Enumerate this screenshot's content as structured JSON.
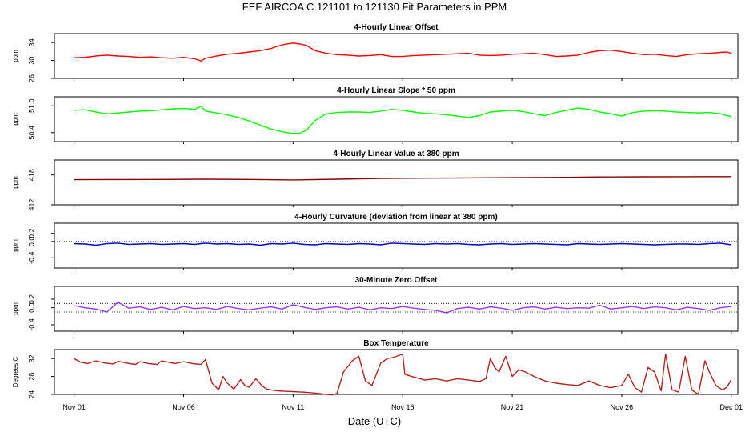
{
  "figure": {
    "title": "FEF   AIRCOA C   121101 to 121130   Fit Parameters in PPM",
    "xlabel": "Date (UTC)",
    "x_tick_labels": [
      "Nov 01",
      "Nov 06",
      "Nov 11",
      "Nov 16",
      "Nov 21",
      "Nov 26",
      "Dec 01"
    ],
    "x_ticks_day": [
      1,
      6,
      11,
      16,
      21,
      26,
      31
    ],
    "x_range_days": [
      0.1,
      31.3
    ]
  },
  "chart_data": [
    {
      "type": "line",
      "title": "4-Hourly Linear Offset",
      "ylabel": "ppm",
      "ylim": [
        26,
        36
      ],
      "yticks": [
        26,
        30,
        34
      ],
      "ytick_labels": [
        "26",
        "30",
        "34"
      ],
      "color": "#ff0000",
      "reference_lines": [],
      "series": [
        {
          "name": "offset",
          "x": [
            1,
            1.5,
            2,
            2.5,
            3,
            3.5,
            4,
            4.5,
            5,
            5.5,
            6,
            6.5,
            6.8,
            7,
            7.5,
            8,
            8.5,
            9,
            9.5,
            10,
            10.3,
            10.6,
            11,
            11.3,
            11.6,
            12,
            12.5,
            13,
            13.5,
            14,
            14.5,
            15,
            15.5,
            16,
            16.5,
            17,
            17.5,
            18,
            18.5,
            19,
            19.5,
            20,
            20.5,
            21,
            21.5,
            22,
            22.5,
            23,
            23.5,
            24,
            24.5,
            25,
            25.5,
            26,
            26.5,
            27,
            27.5,
            28,
            28.5,
            29,
            29.5,
            30,
            30.5,
            30.8,
            31
          ],
          "y": [
            30.6,
            30.7,
            31.0,
            31.2,
            31.0,
            30.9,
            30.7,
            30.8,
            30.6,
            30.5,
            30.7,
            30.4,
            29.9,
            30.5,
            31.0,
            31.4,
            31.6,
            31.9,
            32.2,
            32.7,
            33.2,
            33.6,
            33.9,
            33.7,
            33.4,
            32.2,
            31.6,
            31.3,
            31.2,
            31.0,
            31.1,
            31.3,
            30.9,
            30.9,
            31.1,
            31.2,
            31.3,
            31.4,
            31.5,
            31.6,
            31.2,
            31.1,
            31.2,
            31.4,
            31.5,
            31.6,
            31.3,
            30.9,
            31.0,
            31.2,
            31.8,
            32.2,
            32.3,
            32.0,
            31.6,
            31.3,
            31.4,
            31.1,
            30.9,
            31.3,
            31.5,
            31.6,
            31.8,
            31.9,
            31.6
          ]
        }
      ]
    },
    {
      "type": "line",
      "title": "4-Hourly Linear Slope * 50 ppm",
      "ylabel": "ppm",
      "ylim": [
        50.2,
        51.2
      ],
      "yticks": [
        50.4,
        51.0
      ],
      "ytick_labels": [
        "50.4",
        "51.0"
      ],
      "color": "#00ff00",
      "reference_lines": [],
      "series": [
        {
          "name": "slope",
          "x": [
            1,
            1.5,
            2,
            2.5,
            3,
            3.5,
            4,
            4.5,
            5,
            5.5,
            6,
            6.5,
            6.8,
            7,
            7.5,
            8,
            8.5,
            9,
            9.5,
            10,
            10.5,
            11,
            11.3,
            11.6,
            12,
            12.5,
            13,
            13.5,
            14,
            14.5,
            15,
            15.5,
            16,
            16.5,
            17,
            17.5,
            18,
            18.5,
            19,
            19.5,
            20,
            20.5,
            21,
            21.5,
            22,
            22.5,
            23,
            23.5,
            24,
            24.5,
            25,
            25.5,
            26,
            26.5,
            27,
            27.5,
            28,
            28.5,
            29,
            29.5,
            30,
            30.5,
            30.8,
            31
          ],
          "y": [
            50.9,
            50.91,
            50.86,
            50.82,
            50.84,
            50.86,
            50.88,
            50.89,
            50.91,
            50.93,
            50.94,
            50.92,
            50.99,
            50.88,
            50.84,
            50.8,
            50.74,
            50.66,
            50.57,
            50.48,
            50.42,
            50.38,
            50.39,
            50.45,
            50.67,
            50.82,
            50.85,
            50.86,
            50.86,
            50.85,
            50.88,
            50.92,
            50.9,
            50.86,
            50.83,
            50.82,
            50.8,
            50.77,
            50.74,
            50.78,
            50.86,
            50.88,
            50.9,
            50.87,
            50.82,
            50.78,
            50.85,
            50.9,
            50.95,
            50.92,
            50.86,
            50.82,
            50.77,
            50.85,
            50.88,
            50.89,
            50.88,
            50.86,
            50.85,
            50.84,
            50.85,
            50.82,
            50.78,
            50.76
          ]
        }
      ]
    },
    {
      "type": "line",
      "title": "4-Hourly Linear Value at 380 ppm",
      "ylabel": "ppm",
      "ylim": [
        412,
        421
      ],
      "yticks": [
        412,
        418
      ],
      "ytick_labels": [
        "412",
        "418"
      ],
      "color": "#8b0000",
      "reference_lines": [],
      "series": [
        {
          "name": "value380",
          "x": [
            1,
            3,
            5,
            7,
            9,
            11,
            13,
            15,
            17,
            19,
            21,
            23,
            25,
            27,
            29,
            31
          ],
          "y": [
            417.05,
            417.08,
            417.1,
            417.14,
            417.1,
            417.0,
            417.15,
            417.3,
            417.35,
            417.4,
            417.45,
            417.5,
            417.6,
            417.62,
            417.64,
            417.66
          ]
        }
      ]
    },
    {
      "type": "line",
      "title": "4-Hourly Curvature (deviation from linear at 380 ppm)",
      "ylabel": "ppm",
      "ylim": [
        -0.65,
        0.45
      ],
      "yticks": [
        -0.4,
        0.0,
        0.2
      ],
      "ytick_labels": [
        "-0.4",
        "0.0",
        "0.2"
      ],
      "color": "#0000cd",
      "reference_lines": [
        0.0
      ],
      "series": [
        {
          "name": "curvature",
          "x": [
            1,
            1.5,
            2,
            2.5,
            3,
            3.5,
            4,
            4.5,
            5,
            5.5,
            6,
            6.5,
            7,
            7.5,
            8,
            8.5,
            9,
            9.5,
            10,
            10.5,
            11,
            11.5,
            12,
            12.5,
            13,
            13.5,
            14,
            14.5,
            15,
            15.5,
            16,
            16.5,
            17,
            17.5,
            18,
            18.5,
            19,
            19.5,
            20,
            20.5,
            21,
            21.5,
            22,
            22.5,
            23,
            23.5,
            24,
            24.5,
            25,
            25.5,
            26,
            26.5,
            27,
            27.5,
            28,
            28.5,
            29,
            29.5,
            30,
            30.5,
            31
          ],
          "y": [
            -0.05,
            -0.06,
            -0.09,
            -0.05,
            -0.04,
            -0.07,
            -0.06,
            -0.05,
            -0.07,
            -0.06,
            -0.05,
            -0.07,
            -0.04,
            -0.06,
            -0.05,
            -0.07,
            -0.06,
            -0.09,
            -0.05,
            -0.06,
            -0.04,
            -0.07,
            -0.08,
            -0.05,
            -0.06,
            -0.07,
            -0.05,
            -0.06,
            -0.08,
            -0.04,
            -0.05,
            -0.06,
            -0.07,
            -0.05,
            -0.06,
            -0.05,
            -0.07,
            -0.08,
            -0.06,
            -0.05,
            -0.07,
            -0.06,
            -0.05,
            -0.06,
            -0.07,
            -0.08,
            -0.05,
            -0.06,
            -0.07,
            -0.06,
            -0.05,
            -0.06,
            -0.07,
            -0.08,
            -0.07,
            -0.06,
            -0.06,
            -0.07,
            -0.05,
            -0.04,
            -0.08
          ]
        }
      ]
    },
    {
      "type": "line",
      "title": "30-Minute Zero Offset",
      "ylabel": "ppm",
      "ylim": [
        -0.55,
        0.5
      ],
      "yticks": [
        -0.4,
        0.0,
        0.2
      ],
      "ytick_labels": [
        "-0.4",
        "0.0",
        "0.2"
      ],
      "color": "#9933ff",
      "reference_lines": [
        0.1,
        -0.1
      ],
      "series": [
        {
          "name": "zero_offset",
          "x": [
            1,
            1.5,
            2,
            2.5,
            3,
            3.5,
            4,
            4.5,
            5,
            5.5,
            6,
            6.5,
            7,
            7.5,
            8,
            8.5,
            9,
            9.5,
            10,
            10.5,
            11,
            11.5,
            12,
            12.5,
            13,
            13.5,
            14,
            14.5,
            15,
            15.5,
            16,
            16.5,
            17,
            17.5,
            18,
            18.5,
            19,
            19.5,
            20,
            20.5,
            21,
            21.5,
            22,
            22.5,
            23,
            23.5,
            24,
            24.5,
            25,
            25.5,
            26,
            26.5,
            27,
            27.5,
            28,
            28.5,
            29,
            29.5,
            30,
            30.5,
            31
          ],
          "y": [
            0.05,
            0.0,
            -0.03,
            -0.1,
            0.13,
            -0.01,
            0.02,
            -0.04,
            0.01,
            -0.05,
            0.03,
            -0.02,
            0.0,
            -0.04,
            0.03,
            -0.02,
            -0.05,
            -0.01,
            0.02,
            -0.03,
            0.07,
            0.01,
            -0.04,
            0.0,
            0.02,
            -0.03,
            0.01,
            -0.05,
            0.0,
            -0.02,
            0.03,
            -0.01,
            -0.04,
            -0.06,
            -0.12,
            -0.02,
            0.01,
            -0.03,
            0.02,
            -0.01,
            -0.06,
            0.0,
            0.02,
            -0.03,
            0.01,
            -0.02,
            0.0,
            -0.01,
            0.06,
            -0.03,
            0.0,
            0.03,
            -0.02,
            0.02,
            0.0,
            -0.05,
            0.01,
            -0.02,
            -0.06,
            0.0,
            0.03
          ]
        }
      ]
    },
    {
      "type": "line",
      "title": "Box Temperature",
      "ylabel": "Degrees C",
      "ylim": [
        24,
        34
      ],
      "yticks": [
        24,
        28,
        32
      ],
      "ytick_labels": [
        "24",
        "28",
        "32"
      ],
      "color": "#b22222",
      "reference_lines": [],
      "series": [
        {
          "name": "box_temp",
          "x": [
            1,
            1.3,
            1.6,
            2,
            2.4,
            2.8,
            3,
            3.4,
            3.8,
            4,
            4.4,
            4.8,
            5,
            5.3,
            5.6,
            6,
            6.4,
            6.8,
            7,
            7.3,
            7.6,
            7.8,
            8,
            8.3,
            8.6,
            8.8,
            9,
            9.3,
            9.6,
            9.8,
            10,
            10.3,
            10.6,
            11,
            11.5,
            12,
            12.5,
            12.8,
            13,
            13.3,
            13.7,
            14,
            14.3,
            14.6,
            15,
            15.3,
            15.6,
            16,
            16.1,
            16.4,
            16.8,
            17,
            17.5,
            18,
            18.5,
            19,
            19.5,
            19.8,
            20,
            20.2,
            20.4,
            20.7,
            21,
            21.3,
            21.6,
            22,
            22.5,
            23,
            23.5,
            24,
            24.5,
            25,
            25.5,
            26,
            26.3,
            26.6,
            26.9,
            27.2,
            27.5,
            27.8,
            28,
            28.3,
            28.6,
            28.9,
            29.2,
            29.5,
            29.8,
            30,
            30.3,
            30.6,
            30.8,
            31
          ],
          "y": [
            32.0,
            31.2,
            30.9,
            31.5,
            31.0,
            30.8,
            31.4,
            31.0,
            30.7,
            31.3,
            30.9,
            30.7,
            31.5,
            31.2,
            30.9,
            31.3,
            30.9,
            30.7,
            31.8,
            26.5,
            25.0,
            28.0,
            26.5,
            25.2,
            27.3,
            26.0,
            25.6,
            27.5,
            25.8,
            25.2,
            25.0,
            24.8,
            24.7,
            24.6,
            24.5,
            24.3,
            24.0,
            23.9,
            24.2,
            29.0,
            31.5,
            32.5,
            27.0,
            26.0,
            31.0,
            32.0,
            32.3,
            33.0,
            28.5,
            28.0,
            27.5,
            27.2,
            27.5,
            27.0,
            27.5,
            27.2,
            26.9,
            27.5,
            32.0,
            30.0,
            29.0,
            32.5,
            28.0,
            29.5,
            29.0,
            28.0,
            27.0,
            26.5,
            26.2,
            26.0,
            27.0,
            26.0,
            25.5,
            26.0,
            28.5,
            25.5,
            24.5,
            30.0,
            29.0,
            24.8,
            33.0,
            25.0,
            24.5,
            32.5,
            25.0,
            24.0,
            31.5,
            29.0,
            26.0,
            25.0,
            25.6,
            27.3
          ]
        }
      ]
    }
  ]
}
